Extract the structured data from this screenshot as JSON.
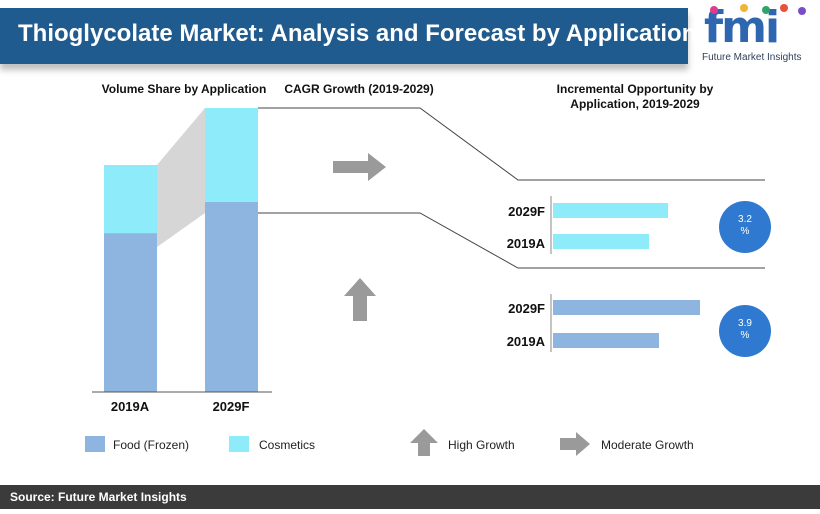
{
  "header": {
    "title": "Thioglycolate Market: Analysis and Forecast by Application"
  },
  "logo": {
    "word": "fmi",
    "subtitle": "Future Market Insights",
    "dot_colors": [
      "#e23a8f",
      "#f2b233",
      "#2ea36a",
      "#e8513a",
      "#7a4cc9"
    ]
  },
  "sections": {
    "volume_share": "Volume Share by Application",
    "cagr": "CAGR Growth (2019-2029)",
    "incremental_line1": "Incremental Opportunity by",
    "incremental_line2": "Application, 2019-2029"
  },
  "colors": {
    "food": "#8eb4e0",
    "cosmetics": "#8eecfa",
    "bubble": "#2f7ad0",
    "arrow": "#9a9a9a",
    "header": "#1f5b8f"
  },
  "chart_data": [
    {
      "type": "bar",
      "stacked": true,
      "title": "Volume Share by Application",
      "categories": [
        "2019A",
        "2029F"
      ],
      "series": [
        {
          "name": "Food (Frozen)",
          "values": [
            70,
            67
          ]
        },
        {
          "name": "Cosmetics",
          "values": [
            30,
            33
          ]
        }
      ]
    },
    {
      "type": "bar",
      "orientation": "horizontal",
      "group": "Cosmetics",
      "categories": [
        "2029F",
        "2019A"
      ],
      "values": [
        115,
        96
      ],
      "cagr": "3.2 %",
      "growth": "Moderate Growth"
    },
    {
      "type": "bar",
      "orientation": "horizontal",
      "group": "Food (Frozen)",
      "categories": [
        "2029F",
        "2019A"
      ],
      "values": [
        147,
        106
      ],
      "cagr": "3.9 %",
      "growth": "High Growth"
    }
  ],
  "cagr_bubbles": [
    {
      "line1": "3.2",
      "line2": "%"
    },
    {
      "line1": "3.9",
      "line2": "%"
    }
  ],
  "legend": [
    {
      "label": "Food (Frozen)",
      "color": "#8eb4e0"
    },
    {
      "label": "Cosmetics",
      "color": "#8eecfa"
    }
  ],
  "growth_legend": {
    "high": "High Growth",
    "moderate": "Moderate Growth"
  },
  "footer": {
    "source": "Source: Future Market Insights"
  }
}
